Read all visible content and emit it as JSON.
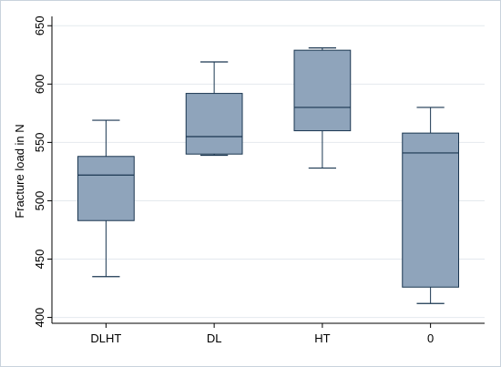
{
  "chart_data": {
    "type": "boxplot",
    "title": "",
    "xlabel": "",
    "ylabel": "Fracture load in N",
    "ylim": [
      395,
      658
    ],
    "yticks": [
      400,
      450,
      500,
      550,
      600,
      650
    ],
    "grid": true,
    "categories": [
      "DLHT",
      "DL",
      "HT",
      "0"
    ],
    "boxes": [
      {
        "category": "DLHT",
        "whisker_low": 435,
        "q1": 483,
        "median": 522,
        "q3": 538,
        "whisker_high": 569
      },
      {
        "category": "DL",
        "whisker_low": 539,
        "q1": 540,
        "median": 555,
        "q3": 592,
        "whisker_high": 619
      },
      {
        "category": "HT",
        "whisker_low": 528,
        "q1": 560,
        "median": 580,
        "q3": 629,
        "whisker_high": 631
      },
      {
        "category": "0",
        "whisker_low": 412,
        "q1": 426,
        "median": 541,
        "q3": 558,
        "whisker_high": 580
      }
    ],
    "colors": {
      "box_fill": "#8fa4bb",
      "box_stroke": "#1a3650",
      "grid": "#e4e9ee",
      "axis": "#000000"
    }
  }
}
